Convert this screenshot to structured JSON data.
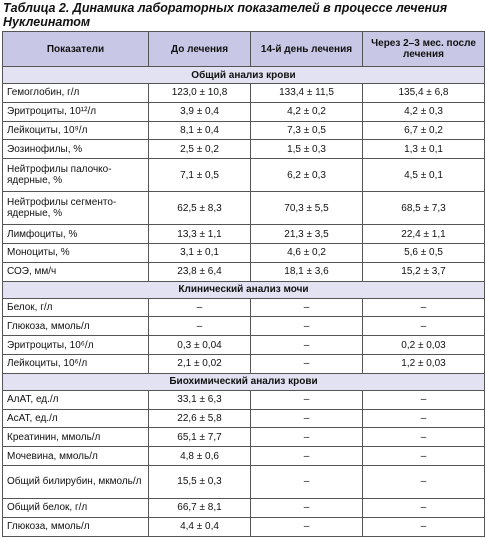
{
  "title": "Таблица 2. Динамика лабораторных показателей в процессе лечения Нуклеинатом",
  "table": {
    "header": [
      "Показатели",
      "До лечения",
      "14-й день лечения",
      "Через 2–3 мес. после лечения"
    ],
    "sections": [
      {
        "title": "Общий анализ крови",
        "rows": [
          [
            "Гемоглобин, г/л",
            "123,0 ± 10,8",
            "133,4 ± 11,5",
            "135,4 ± 6,8"
          ],
          [
            "Эритроциты, 10¹²/л",
            "3,9 ± 0,4",
            "4,2 ± 0,2",
            "4,2 ± 0,3"
          ],
          [
            "Лейкоциты, 10⁹/л",
            "8,1 ± 0,4",
            "7,3 ± 0,5",
            "6,7 ± 0,2"
          ],
          [
            "Эозинофилы, %",
            "2,5 ± 0,2",
            "1,5 ± 0,3",
            "1,3 ± 0,1"
          ],
          [
            "Нейтрофилы палочко-ядерные, %",
            "7,1 ± 0,5",
            "6,2 ± 0,3",
            "4,5 ± 0,1"
          ],
          [
            "Нейтрофилы сегменто-ядерные, %",
            "62,5 ± 8,3",
            "70,3 ± 5,5",
            "68,5 ± 7,3"
          ],
          [
            "Лимфоциты, %",
            "13,3 ± 1,1",
            "21,3 ± 3,5",
            "22,4 ± 1,1"
          ],
          [
            "Моноциты, %",
            "3,1 ± 0,1",
            "4,6 ± 0,2",
            "5,6 ± 0,5"
          ],
          [
            "СОЭ, мм/ч",
            "23,8 ± 6,4",
            "18,1 ± 3,6",
            "15,2 ± 3,7"
          ]
        ]
      },
      {
        "title": "Клинический анализ мочи",
        "rows": [
          [
            "Белок, г/л",
            "–",
            "–",
            "–"
          ],
          [
            "Глюкоза, ммоль/л",
            "–",
            "–",
            "–"
          ],
          [
            "Эритроциты, 10⁶/л",
            "0,3 ± 0,04",
            "–",
            "0,2 ± 0,03"
          ],
          [
            "Лейкоциты, 10⁶/л",
            "2,1 ± 0,02",
            "–",
            "1,2 ± 0,03"
          ]
        ]
      },
      {
        "title": "Биохимический анализ крови",
        "rows": [
          [
            "АлАТ, ед./л",
            "33,1 ± 6,3",
            "–",
            "–"
          ],
          [
            "АсАТ, ед./л",
            "22,6 ± 5,8",
            "–",
            "–"
          ],
          [
            "Креатинин, ммоль/л",
            "65,1 ± 7,7",
            "–",
            "–"
          ],
          [
            "Мочевина, ммоль/л",
            "4,8 ± 0,6",
            "–",
            "–"
          ],
          [
            "Общий билирубин, мкмоль/л",
            "15,5 ± 0,3",
            "–",
            "–"
          ],
          [
            "Общий белок, г/л",
            "66,7 ± 8,1",
            "–",
            "–"
          ],
          [
            "Глюкоза, ммоль/л",
            "4,4 ± 0,4",
            "–",
            "–"
          ]
        ]
      }
    ]
  }
}
